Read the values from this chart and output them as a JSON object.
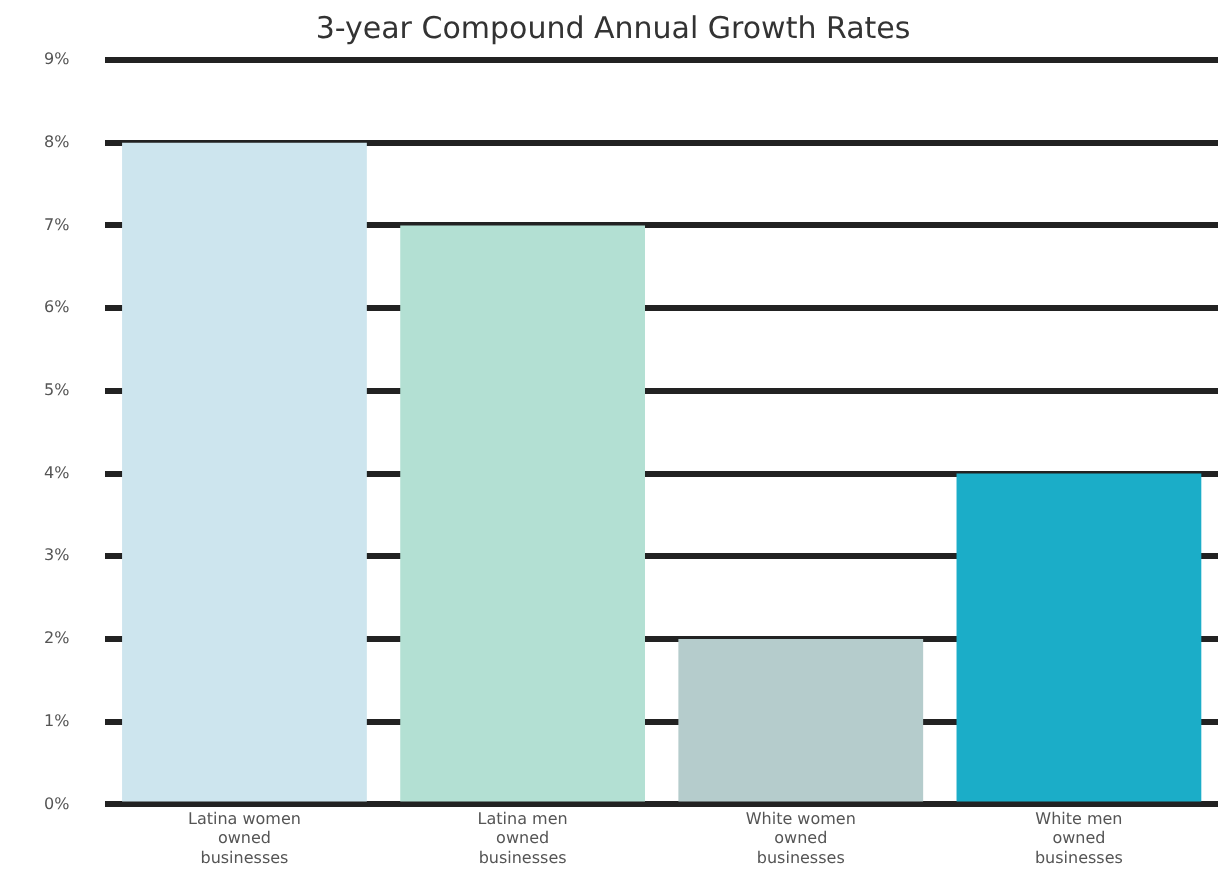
{
  "chart_data": {
    "type": "bar",
    "title": "3-year Compound Annual Growth Rates",
    "categories": [
      "Latina women owned businesses",
      "Latina men owned businesses",
      "White women owned businesses",
      "White men owned businesses"
    ],
    "values": [
      8,
      7,
      2,
      4
    ],
    "colors": [
      "#cde5ee",
      "#b3e0d3",
      "#b5cccc",
      "#1badc8"
    ],
    "ylim": [
      0,
      9
    ],
    "yticks": [
      {
        "value": 0,
        "label": "0%"
      },
      {
        "value": 1,
        "label": "1%"
      },
      {
        "value": 2,
        "label": "2%"
      },
      {
        "value": 3,
        "label": "3%"
      },
      {
        "value": 4,
        "label": "4%"
      },
      {
        "value": 5,
        "label": "5%"
      },
      {
        "value": 6,
        "label": "6%"
      },
      {
        "value": 7,
        "label": "7%"
      },
      {
        "value": 8,
        "label": "8%"
      },
      {
        "value": 9,
        "label": "9%"
      }
    ],
    "grid": "y"
  }
}
